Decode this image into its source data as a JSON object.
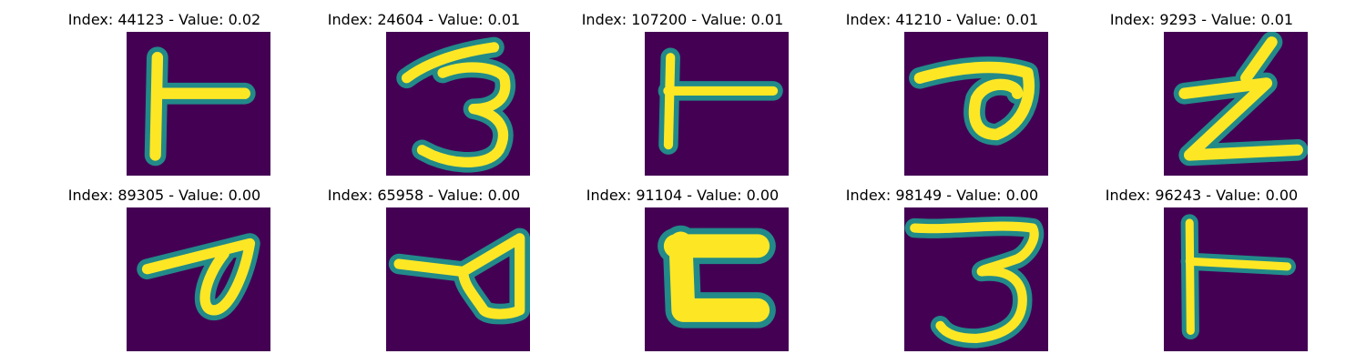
{
  "figure": {
    "background_color": "#440154",
    "colormap": [
      "#440154",
      "#3b528b",
      "#21918c",
      "#5ec962",
      "#fde725"
    ],
    "panels": [
      {
        "title": "Index: 44123 - Value: 0.02",
        "glyph": "handwritten-character-T-rotated"
      },
      {
        "title": "Index: 24604 - Value: 0.01",
        "glyph": "handwritten-character-3"
      },
      {
        "title": "Index: 107200 - Value: 0.01",
        "glyph": "handwritten-character-T-rotated"
      },
      {
        "title": "Index: 41210 - Value: 0.01",
        "glyph": "handwritten-character-loop"
      },
      {
        "title": "Index: 9293 - Value: 0.01",
        "glyph": "handwritten-character-Z"
      },
      {
        "title": "Index: 89305 - Value: 0.00",
        "glyph": "handwritten-character-loop"
      },
      {
        "title": "Index: 65958 - Value: 0.00",
        "glyph": "handwritten-character-loop"
      },
      {
        "title": "Index: 91104 - Value: 0.00",
        "glyph": "handwritten-character-C-block"
      },
      {
        "title": "Index: 98149 - Value: 0.00",
        "glyph": "handwritten-character-3"
      },
      {
        "title": "Index: 96243 - Value: 0.00",
        "glyph": "handwritten-character-T-rotated"
      }
    ]
  }
}
